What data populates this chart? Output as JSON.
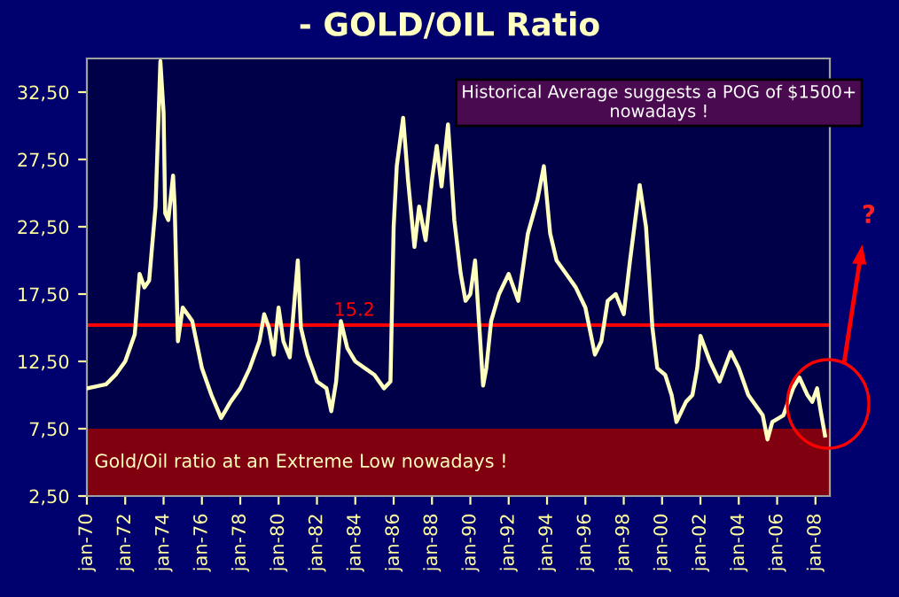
{
  "chart_data": {
    "type": "line",
    "title": "- GOLD/OIL Ratio",
    "x": [
      "1970-01",
      "1971-01",
      "1971-07",
      "1972-01",
      "1972-07",
      "1972-10",
      "1973-01",
      "1973-04",
      "1973-08",
      "1973-11",
      "1974-01",
      "1974-02",
      "1974-04",
      "1974-07",
      "1974-08",
      "1974-10",
      "1975-01",
      "1975-07",
      "1976-01",
      "1976-07",
      "1977-01",
      "1977-07",
      "1978-01",
      "1978-07",
      "1979-01",
      "1979-04",
      "1979-07",
      "1979-10",
      "1980-01",
      "1980-04",
      "1980-08",
      "1981-01",
      "1981-03",
      "1981-07",
      "1982-01",
      "1982-07",
      "1982-10",
      "1983-01",
      "1983-04",
      "1983-08",
      "1984-01",
      "1984-07",
      "1985-01",
      "1985-07",
      "1985-11",
      "1986-01",
      "1986-03",
      "1986-07",
      "1986-10",
      "1987-02",
      "1987-05",
      "1987-09",
      "1988-01",
      "1988-04",
      "1988-07",
      "1988-11",
      "1989-03",
      "1989-07",
      "1989-10",
      "1990-01",
      "1990-04",
      "1990-09",
      "1990-11",
      "1991-02",
      "1991-07",
      "1992-01",
      "1992-07",
      "1993-01",
      "1993-07",
      "1993-11",
      "1994-03",
      "1994-07",
      "1995-01",
      "1995-07",
      "1996-01",
      "1996-07",
      "1996-11",
      "1997-03",
      "1997-08",
      "1998-01",
      "1998-05",
      "1998-11",
      "1999-03",
      "1999-07",
      "1999-10",
      "2000-03",
      "2000-07",
      "2000-10",
      "2001-04",
      "2001-08",
      "2001-11",
      "2002-01",
      "2002-07",
      "2003-01",
      "2003-08",
      "2004-01",
      "2004-07",
      "2005-01",
      "2005-04",
      "2005-07",
      "2005-10",
      "2006-05",
      "2006-11",
      "2007-03",
      "2007-08",
      "2007-11",
      "2008-02",
      "2008-04",
      "2008-07"
    ],
    "series": [
      {
        "color": "#ffffc0",
        "values": [
          10.5,
          10.8,
          11.5,
          12.5,
          14.5,
          19,
          18,
          18.5,
          24,
          34.8,
          31,
          23.5,
          23,
          26.3,
          24,
          14,
          16.5,
          15.5,
          12,
          10,
          8.3,
          9.5,
          10.5,
          12,
          14,
          16,
          15,
          13,
          16.5,
          14,
          12.8,
          20,
          15,
          13,
          11,
          10.5,
          8.8,
          11,
          15.5,
          13.5,
          12.5,
          12,
          11.5,
          10.5,
          11,
          22.5,
          27,
          30.6,
          26,
          21,
          24,
          21.5,
          26,
          28.5,
          25.5,
          30.1,
          23,
          19,
          17,
          17.5,
          20,
          10.7,
          12,
          15.5,
          17.5,
          19,
          17,
          22,
          24.5,
          27,
          22,
          20,
          19,
          18,
          16.5,
          13,
          14,
          17,
          17.5,
          16,
          20,
          25.6,
          22.5,
          15,
          12,
          11.5,
          10,
          8,
          9.5,
          10,
          12,
          14.4,
          12.5,
          11,
          13.2,
          12,
          10,
          9,
          8.5,
          6.7,
          8,
          8.5,
          10.5,
          11.3,
          10,
          9.5,
          10.5,
          9,
          7
        ]
      }
    ],
    "xlim": [
      "1970-01",
      "2008-10"
    ],
    "xticks": [
      {
        "value": "1970-01",
        "label": "jan-70"
      },
      {
        "value": "1972-01",
        "label": "jan-72"
      },
      {
        "value": "1974-01",
        "label": "jan-74"
      },
      {
        "value": "1976-01",
        "label": "jan-76"
      },
      {
        "value": "1978-01",
        "label": "jan-78"
      },
      {
        "value": "1980-01",
        "label": "jan-80"
      },
      {
        "value": "1982-01",
        "label": "jan-82"
      },
      {
        "value": "1984-01",
        "label": "jan-84"
      },
      {
        "value": "1986-01",
        "label": "jan-86"
      },
      {
        "value": "1988-01",
        "label": "jan-88"
      },
      {
        "value": "1990-01",
        "label": "jan-90"
      },
      {
        "value": "1992-01",
        "label": "jan-92"
      },
      {
        "value": "1994-01",
        "label": "jan-94"
      },
      {
        "value": "1996-01",
        "label": "jan-96"
      },
      {
        "value": "1998-01",
        "label": "jan-98"
      },
      {
        "value": "2000-01",
        "label": "jan-00"
      },
      {
        "value": "2002-01",
        "label": "jan-02"
      },
      {
        "value": "2004-01",
        "label": "jan-04"
      },
      {
        "value": "2006-01",
        "label": "jan-06"
      },
      {
        "value": "2008-01",
        "label": "jan-08"
      }
    ],
    "ylim": [
      2.5,
      35
    ],
    "yticks": [
      {
        "value": 2.5,
        "label": "2,50"
      },
      {
        "value": 7.5,
        "label": "7,50"
      },
      {
        "value": 12.5,
        "label": "12,50"
      },
      {
        "value": 17.5,
        "label": "17,50"
      },
      {
        "value": 22.5,
        "label": "22,50"
      },
      {
        "value": 27.5,
        "label": "27,50"
      },
      {
        "value": 32.5,
        "label": "32,50"
      }
    ],
    "ref_lines": [
      {
        "axis": "y",
        "value": 15.2,
        "label": "15.2",
        "color": "#ff0000"
      }
    ],
    "bands": [
      {
        "axis": "y",
        "from": 2.5,
        "to": 7.5,
        "label": "Gold/Oil ratio at an Extreme Low nowadays !",
        "color": "#800010"
      }
    ],
    "annotations": [
      "Historical Average suggests a POG of $1500+ nowadays !",
      "?"
    ],
    "grid": false,
    "marker": "none",
    "line_style": "solid"
  }
}
